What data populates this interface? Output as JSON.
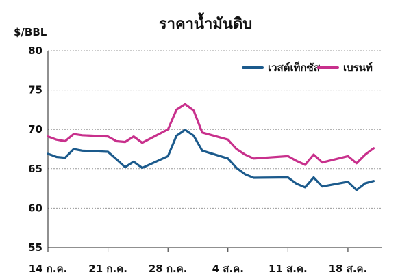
{
  "chart_data": {
    "type": "line",
    "title": "ราคาน้ำมันดิบ",
    "ylabel": "$/BBL",
    "ylim": [
      55,
      80
    ],
    "yticks": [
      "55",
      "60",
      "65",
      "70",
      "75",
      "80"
    ],
    "xticks": [
      {
        "day": 0,
        "label": "14 ก.ค."
      },
      {
        "day": 7,
        "label": "21 ก.ค."
      },
      {
        "day": 14,
        "label": "28 ก.ค."
      },
      {
        "day": 21,
        "label": "4 ส.ค."
      },
      {
        "day": 28,
        "label": "11 ส.ค."
      },
      {
        "day": 35,
        "label": "18 ส.ค."
      }
    ],
    "xlim": [
      0,
      39
    ],
    "grid": true,
    "legend_position": "top-right",
    "series": [
      {
        "name": "เวสต์เท็กซัส",
        "color": "#1b5a8c",
        "points": [
          [
            0,
            66.9
          ],
          [
            1,
            66.5
          ],
          [
            2,
            66.4
          ],
          [
            3,
            67.5
          ],
          [
            4,
            67.3
          ],
          [
            5,
            67.25
          ],
          [
            7,
            67.15
          ],
          [
            8,
            66.2
          ],
          [
            9,
            65.2
          ],
          [
            10,
            65.9
          ],
          [
            11,
            65.1
          ],
          [
            14,
            66.6
          ],
          [
            15,
            69.2
          ],
          [
            16,
            69.95
          ],
          [
            17,
            69.2
          ],
          [
            18,
            67.3
          ],
          [
            21,
            66.3
          ],
          [
            22,
            65.1
          ],
          [
            23,
            64.3
          ],
          [
            24,
            63.85
          ],
          [
            28,
            63.9
          ],
          [
            29,
            63.1
          ],
          [
            30,
            62.65
          ],
          [
            31,
            63.9
          ],
          [
            32,
            62.75
          ],
          [
            35,
            63.35
          ],
          [
            36,
            62.3
          ],
          [
            37,
            63.15
          ],
          [
            38,
            63.45
          ]
        ]
      },
      {
        "name": "เบรนท์",
        "color": "#c8308c",
        "points": [
          [
            0,
            69.1
          ],
          [
            1,
            68.7
          ],
          [
            2,
            68.5
          ],
          [
            3,
            69.4
          ],
          [
            4,
            69.25
          ],
          [
            5,
            69.2
          ],
          [
            7,
            69.1
          ],
          [
            8,
            68.5
          ],
          [
            9,
            68.4
          ],
          [
            10,
            69.1
          ],
          [
            11,
            68.3
          ],
          [
            14,
            70.0
          ],
          [
            15,
            72.5
          ],
          [
            16,
            73.2
          ],
          [
            17,
            72.4
          ],
          [
            18,
            69.6
          ],
          [
            21,
            68.7
          ],
          [
            22,
            67.5
          ],
          [
            23,
            66.8
          ],
          [
            24,
            66.3
          ],
          [
            28,
            66.6
          ],
          [
            29,
            66.0
          ],
          [
            30,
            65.5
          ],
          [
            31,
            66.8
          ],
          [
            32,
            65.8
          ],
          [
            35,
            66.6
          ],
          [
            36,
            65.7
          ],
          [
            37,
            66.8
          ],
          [
            38,
            67.6
          ]
        ]
      }
    ]
  }
}
